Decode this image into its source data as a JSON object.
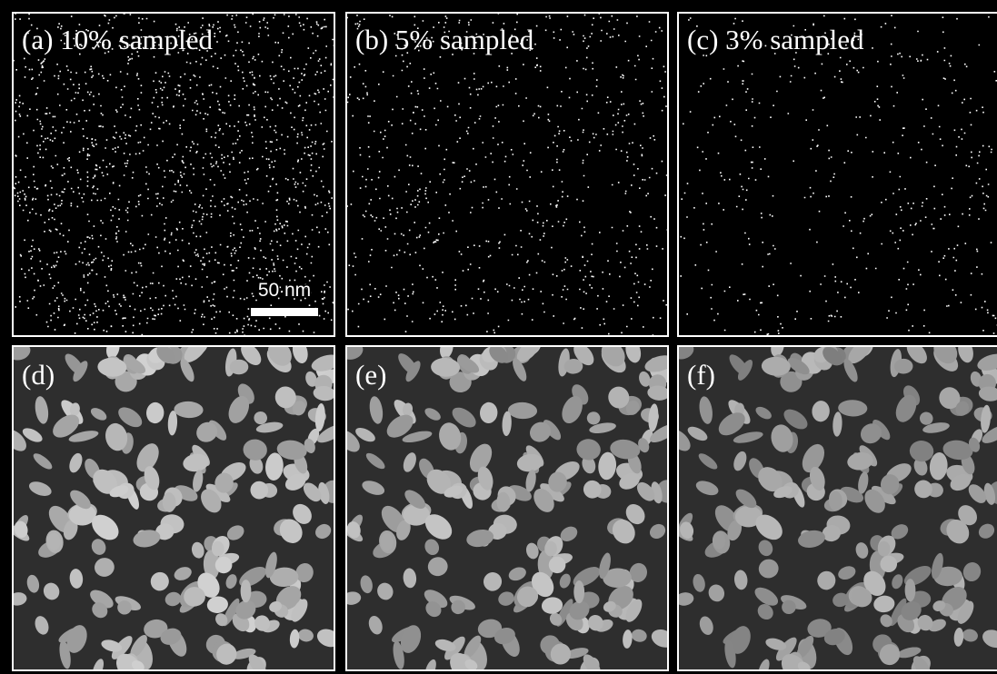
{
  "panels": [
    {
      "label": "(a) 10% sampled"
    },
    {
      "label": "(b) 5% sampled"
    },
    {
      "label": "(c) 3% sampled"
    },
    {
      "label": "(d)"
    },
    {
      "label": "(e)"
    },
    {
      "label": "(f)"
    }
  ],
  "scale_bar": {
    "label": "50 nm"
  }
}
